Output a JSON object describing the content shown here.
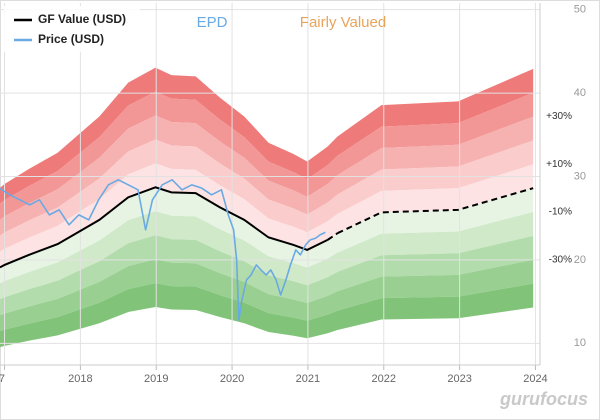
{
  "chart_data": {
    "type": "line",
    "title": "EPD",
    "subtitle": "Fairly Valued",
    "watermark": "gurufocus",
    "xlim": [
      2016.94,
      2024.06
    ],
    "xticks": [
      {
        "value": 2017,
        "label": "7"
      },
      2018,
      2019,
      2020,
      2021,
      2022,
      2023,
      2024
    ],
    "ylim": [
      7.4,
      50.8
    ],
    "yticks": [
      10,
      20,
      30,
      40,
      50
    ],
    "grid": true,
    "legend": "top-left",
    "series": [
      {
        "name": "GF Value (USD)",
        "color": "#000000",
        "x": [
          2016.94,
          2017.0,
          2017.32,
          2017.7,
          2018.25,
          2018.63,
          2018.99,
          2019.2,
          2019.52,
          2019.84,
          2020.16,
          2020.48,
          2020.81,
          2020.99,
          2021.26
        ],
        "values": [
          19.1,
          19.4,
          20.6,
          21.9,
          24.8,
          27.5,
          28.7,
          28.1,
          28.0,
          26.3,
          24.8,
          22.7,
          21.8,
          21.2,
          22.4
        ]
      },
      {
        "name": "Price (USD)",
        "color": "#6aaae4",
        "x": [
          2016.93,
          2017.07,
          2017.2,
          2017.33,
          2017.46,
          2017.59,
          2017.72,
          2017.85,
          2017.98,
          2018.11,
          2018.24,
          2018.37,
          2018.5,
          2018.63,
          2018.76,
          2018.86,
          2018.95,
          2019.08,
          2019.21,
          2019.34,
          2019.47,
          2019.6,
          2019.73,
          2019.86,
          2019.95,
          2020.02,
          2020.06,
          2020.09,
          2020.13,
          2020.19,
          2020.25,
          2020.32,
          2020.38,
          2020.45,
          2020.51,
          2020.58,
          2020.64,
          2020.71,
          2020.77,
          2020.84,
          2020.9,
          2020.97,
          2021.03,
          2021.1,
          2021.16,
          2021.23
        ],
        "values": [
          28.6,
          27.8,
          27.2,
          26.6,
          27.2,
          25.4,
          26.0,
          24.2,
          25.4,
          24.8,
          27.2,
          29.0,
          29.6,
          29.0,
          28.4,
          23.6,
          27.2,
          29.0,
          29.6,
          28.4,
          29.0,
          28.6,
          27.8,
          28.4,
          25.4,
          23.6,
          20.0,
          12.8,
          15.2,
          17.6,
          18.2,
          19.4,
          18.8,
          18.2,
          18.8,
          17.6,
          15.8,
          17.6,
          19.4,
          21.2,
          20.6,
          21.8,
          22.4,
          22.6,
          23.0,
          23.3
        ]
      }
    ],
    "gf_projection": {
      "x": [
        2021.39,
        2021.97,
        2022.98,
        2023.97
      ],
      "values": [
        23.2,
        25.7,
        26.0,
        28.6
      ]
    },
    "bands": [
      {
        "from": 40,
        "to": 50,
        "color": "#ee7a7a"
      },
      {
        "from": 30,
        "to": 40,
        "color": "#f29696"
      },
      {
        "from": 20,
        "to": 30,
        "color": "#f6b1b1"
      },
      {
        "from": 10,
        "to": 20,
        "color": "#facccc"
      },
      {
        "from": 0,
        "to": 10,
        "color": "#fde3e3"
      },
      {
        "from": -10,
        "to": 0,
        "color": "#e7f4e4"
      },
      {
        "from": -20,
        "to": -10,
        "color": "#cfe9c9"
      },
      {
        "from": -30,
        "to": -20,
        "color": "#b3dcac"
      },
      {
        "from": -40,
        "to": -30,
        "color": "#99d091"
      },
      {
        "from": -50,
        "to": -40,
        "color": "#81c479"
      }
    ],
    "band_labels": [
      {
        "value": 30,
        "label": "+30%"
      },
      {
        "value": 10,
        "label": "+10%"
      },
      {
        "value": -10,
        "label": "-10%"
      },
      {
        "value": -30,
        "label": "-30%"
      }
    ]
  }
}
